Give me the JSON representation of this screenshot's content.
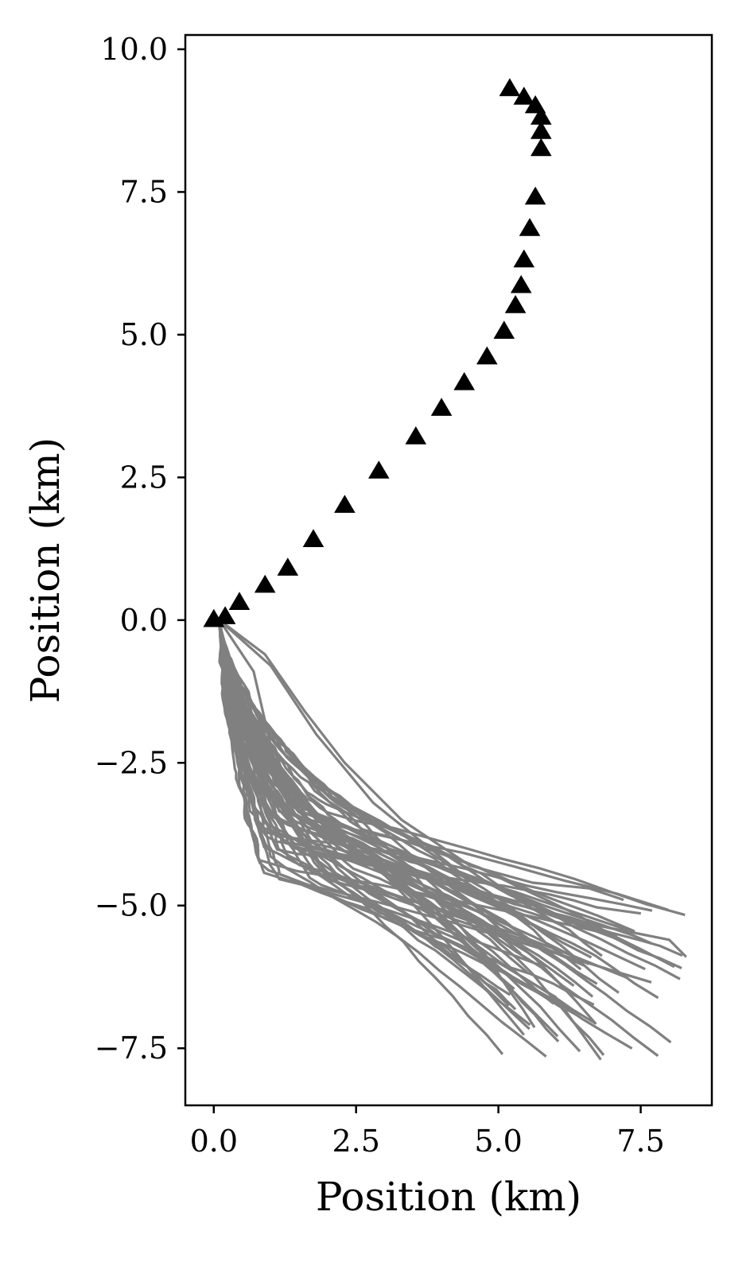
{
  "chart_data": {
    "type": "line",
    "title": "",
    "xlabel": "Position (km)",
    "ylabel": "Position (km)",
    "xlim": [
      -0.5,
      8.75
    ],
    "ylim": [
      -8.5,
      10.25
    ],
    "x_ticks": [
      0.0,
      2.5,
      5.0,
      7.5
    ],
    "y_ticks": [
      10.0,
      7.5,
      5.0,
      2.5,
      0.0,
      -2.5,
      -5.0,
      -7.5
    ],
    "x_tick_labels": [
      "0.0",
      "2.5",
      "5.0",
      "7.5"
    ],
    "y_tick_labels": [
      "10.0",
      "7.5",
      "5.0",
      "2.5",
      "0.0",
      "−2.5",
      "−5.0",
      "−7.5"
    ],
    "grid": false,
    "legend": "none",
    "colors": {
      "markers": "#000000",
      "trajectories": "#808080"
    },
    "marker_series": {
      "marker": "triangle",
      "points": [
        [
          0.0,
          0.0
        ],
        [
          0.2,
          0.05
        ],
        [
          0.45,
          0.3
        ],
        [
          0.9,
          0.6
        ],
        [
          1.3,
          0.9
        ],
        [
          1.75,
          1.4
        ],
        [
          2.3,
          2.0
        ],
        [
          2.9,
          2.6
        ],
        [
          3.55,
          3.2
        ],
        [
          4.0,
          3.7
        ],
        [
          4.4,
          4.15
        ],
        [
          4.8,
          4.6
        ],
        [
          5.1,
          5.05
        ],
        [
          5.3,
          5.5
        ],
        [
          5.4,
          5.85
        ],
        [
          5.45,
          6.3
        ],
        [
          5.55,
          6.85
        ],
        [
          5.65,
          7.4
        ],
        [
          5.75,
          8.25
        ],
        [
          5.75,
          8.55
        ],
        [
          5.75,
          8.8
        ],
        [
          5.65,
          9.0
        ],
        [
          5.45,
          9.15
        ],
        [
          5.2,
          9.3
        ]
      ]
    },
    "trajectory_series": {
      "count": 60,
      "origin": [
        0.1,
        0.0
      ],
      "envelope": {
        "x_end_min": 5.0,
        "x_end_max": 8.3,
        "y_end_min": -7.7,
        "y_end_max": -4.9
      },
      "examples": [
        [
          [
            0.1,
            0.0
          ],
          [
            0.9,
            -0.6
          ],
          [
            1.6,
            -1.6
          ],
          [
            2.3,
            -2.5
          ],
          [
            3.3,
            -3.5
          ],
          [
            4.5,
            -4.3
          ],
          [
            5.6,
            -4.6
          ],
          [
            6.6,
            -4.7
          ],
          [
            7.2,
            -4.9
          ]
        ],
        [
          [
            0.1,
            0.0
          ],
          [
            0.7,
            -0.9
          ],
          [
            1.0,
            -2.2
          ],
          [
            1.4,
            -3.6
          ],
          [
            2.6,
            -4.6
          ],
          [
            3.9,
            -5.5
          ],
          [
            5.0,
            -6.0
          ],
          [
            6.0,
            -6.6
          ],
          [
            6.8,
            -7.7
          ]
        ],
        [
          [
            0.1,
            0.0
          ],
          [
            1.0,
            -0.8
          ],
          [
            1.8,
            -2.0
          ],
          [
            2.8,
            -3.2
          ],
          [
            4.3,
            -4.4
          ],
          [
            5.8,
            -5.0
          ],
          [
            7.0,
            -5.4
          ],
          [
            8.0,
            -5.6
          ],
          [
            8.3,
            -5.9
          ]
        ]
      ]
    }
  }
}
